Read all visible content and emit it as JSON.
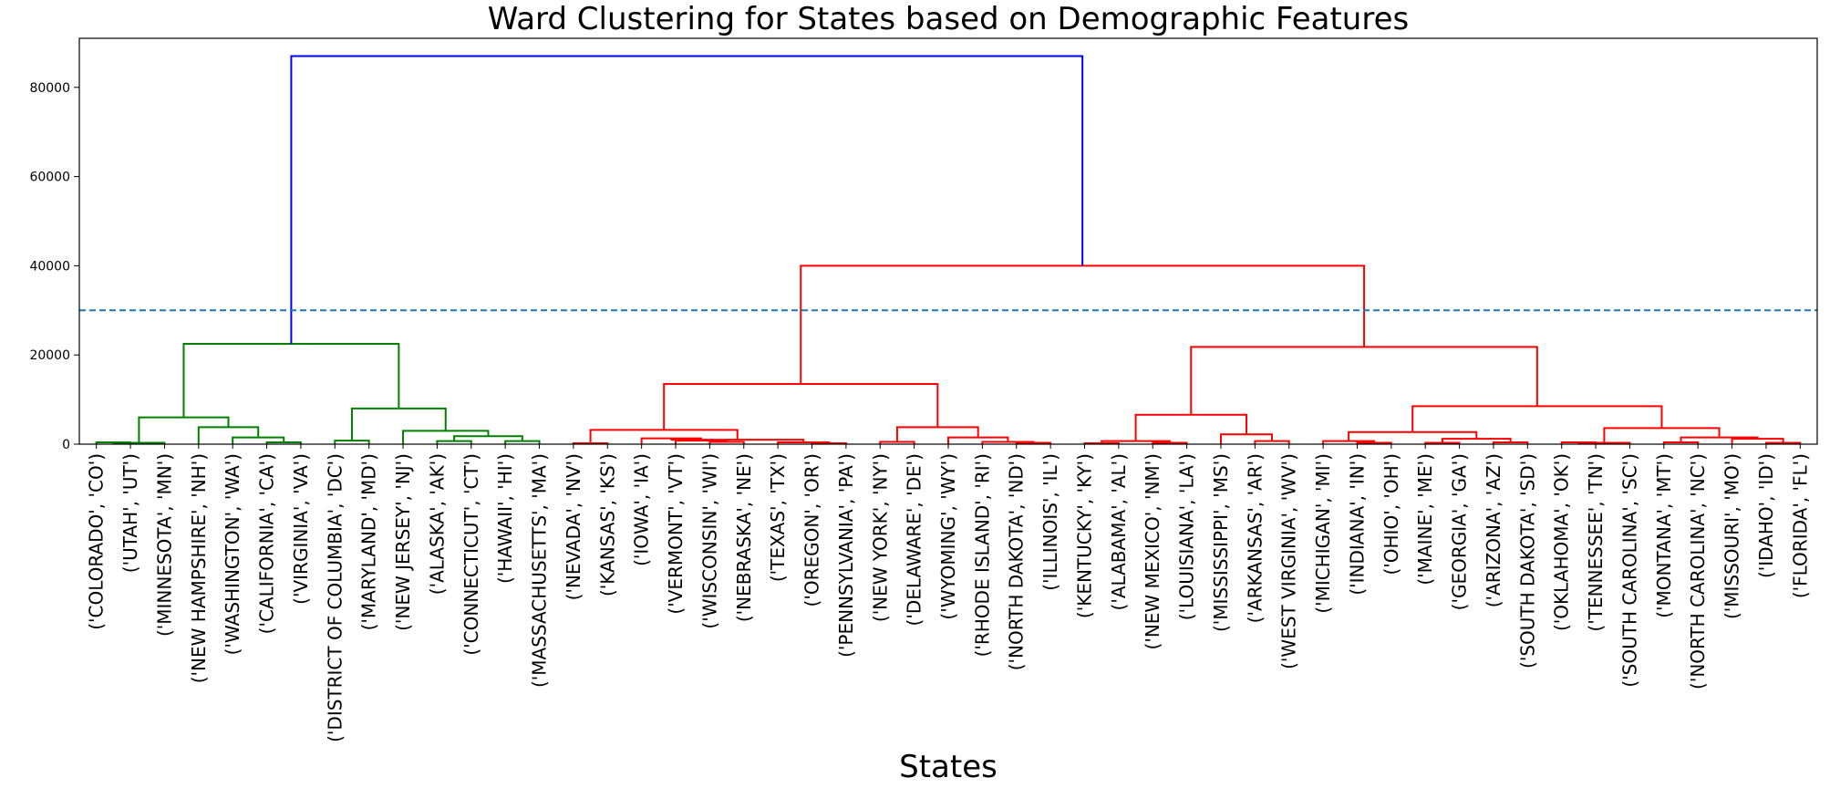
{
  "chart_data": {
    "type": "dendrogram",
    "title": "Ward Clustering for States based on Demographic Features",
    "xlabel": "States",
    "ylabel": "",
    "ylim": [
      0,
      91000
    ],
    "yticks": [
      0,
      20000,
      40000,
      60000,
      80000
    ],
    "threshold": 30000,
    "colors": {
      "above_threshold": "#0000ff",
      "cluster_green": "#008000",
      "cluster_red": "#ff0000",
      "threshold_line": "#1f77b4"
    },
    "leaves": [
      "('COLORADO', 'CO')",
      "('UTAH', 'UT')",
      "('MINNESOTA', 'MN')",
      "('NEW HAMPSHIRE', 'NH')",
      "('WASHINGTON', 'WA')",
      "('CALIFORNIA', 'CA')",
      "('VIRGINIA', 'VA')",
      "('DISTRICT OF COLUMBIA', 'DC')",
      "('MARYLAND', 'MD')",
      "('NEW JERSEY', 'NJ')",
      "('ALASKA', 'AK')",
      "('CONNECTICUT', 'CT')",
      "('HAWAII', 'HI')",
      "('MASSACHUSETTS', 'MA')",
      "('NEVADA', 'NV')",
      "('KANSAS', 'KS')",
      "('IOWA', 'IA')",
      "('VERMONT', 'VT')",
      "('WISCONSIN', 'WI')",
      "('NEBRASKA', 'NE')",
      "('TEXAS', 'TX')",
      "('OREGON', 'OR')",
      "('PENNSYLVANIA', 'PA')",
      "('NEW YORK', 'NY')",
      "('DELAWARE', 'DE')",
      "('WYOMING', 'WY')",
      "('RHODE ISLAND', 'RI')",
      "('NORTH DAKOTA', 'ND')",
      "('ILLINOIS', 'IL')",
      "('KENTUCKY', 'KY')",
      "('ALABAMA', 'AL')",
      "('NEW MEXICO', 'NM')",
      "('LOUISIANA', 'LA')",
      "('MISSISSIPPI', 'MS')",
      "('ARKANSAS', 'AR')",
      "('WEST VIRGINIA', 'WV')",
      "('MICHIGAN', 'MI')",
      "('INDIANA', 'IN')",
      "('OHIO', 'OH')",
      "('MAINE', 'ME')",
      "('GEORGIA', 'GA')",
      "('ARIZONA', 'AZ')",
      "('SOUTH DAKOTA', 'SD')",
      "('OKLAHOMA', 'OK')",
      "('TENNESSEE', 'TN')",
      "('SOUTH CAROLINA', 'SC')",
      "('MONTANA', 'MT')",
      "('NORTH CAROLINA', 'NC')",
      "('MISSOURI', 'MO')",
      "('IDAHO', 'ID')",
      "('FLORIDA', 'FL')"
    ],
    "merges": [
      {
        "id": "g_CO_UT",
        "left": 0,
        "right": 1,
        "height": 400,
        "color": "green"
      },
      {
        "id": "g_CO_MN",
        "left": "g_CO_UT",
        "right": 2,
        "height": 300,
        "color": "green"
      },
      {
        "id": "g_CA_VA",
        "left": 5,
        "right": 6,
        "height": 400,
        "color": "green"
      },
      {
        "id": "g_WA_VA",
        "left": 4,
        "right": "g_CA_VA",
        "height": 1500,
        "color": "green"
      },
      {
        "id": "g_NH_VA",
        "left": 3,
        "right": "g_WA_VA",
        "height": 3800,
        "color": "green"
      },
      {
        "id": "g_left",
        "left": "g_CO_MN",
        "right": "g_NH_VA",
        "height": 6000,
        "color": "green"
      },
      {
        "id": "g_DC_MD",
        "left": 7,
        "right": 8,
        "height": 800,
        "color": "green"
      },
      {
        "id": "g_AK_CT",
        "left": 10,
        "right": 11,
        "height": 700,
        "color": "green"
      },
      {
        "id": "g_HI_MA",
        "left": 12,
        "right": 13,
        "height": 700,
        "color": "green"
      },
      {
        "id": "g_AK_MA",
        "left": "g_AK_CT",
        "right": "g_HI_MA",
        "height": 1800,
        "color": "green"
      },
      {
        "id": "g_NJ_MA",
        "left": 9,
        "right": "g_AK_MA",
        "height": 3000,
        "color": "green"
      },
      {
        "id": "g_DC_MA",
        "left": "g_DC_MD",
        "right": "g_NJ_MA",
        "height": 8000,
        "color": "green"
      },
      {
        "id": "g_all",
        "left": "g_left",
        "right": "g_DC_MA",
        "height": 22500,
        "color": "green"
      },
      {
        "id": "r_NV_KS",
        "left": 14,
        "right": 15,
        "height": 200,
        "color": "red"
      },
      {
        "id": "r_WI_NE",
        "left": 18,
        "right": 19,
        "height": 500,
        "color": "red"
      },
      {
        "id": "r_VT_NE",
        "left": 17,
        "right": "r_WI_NE",
        "height": 800,
        "color": "red"
      },
      {
        "id": "r_IA_NE",
        "left": 16,
        "right": "r_VT_NE",
        "height": 1300,
        "color": "red"
      },
      {
        "id": "r_OR_PA",
        "left": 21,
        "right": 22,
        "height": 200,
        "color": "red"
      },
      {
        "id": "r_TX_PA",
        "left": 20,
        "right": "r_OR_PA",
        "height": 400,
        "color": "red"
      },
      {
        "id": "r_IA_PA",
        "left": "r_IA_NE",
        "right": "r_TX_PA",
        "height": 1000,
        "color": "red"
      },
      {
        "id": "r_A",
        "left": "r_NV_KS",
        "right": "r_IA_PA",
        "height": 3200,
        "color": "red"
      },
      {
        "id": "r_NY_DE",
        "left": 23,
        "right": 24,
        "height": 500,
        "color": "red"
      },
      {
        "id": "r_ND_IL",
        "left": 27,
        "right": 28,
        "height": 300,
        "color": "red"
      },
      {
        "id": "r_RI_IL",
        "left": 26,
        "right": "r_ND_IL",
        "height": 500,
        "color": "red"
      },
      {
        "id": "r_WY_IL",
        "left": 25,
        "right": "r_RI_IL",
        "height": 1500,
        "color": "red"
      },
      {
        "id": "r_B",
        "left": "r_NY_DE",
        "right": "r_WY_IL",
        "height": 3800,
        "color": "red"
      },
      {
        "id": "r_AB",
        "left": "r_A",
        "right": "r_B",
        "height": 13500,
        "color": "red"
      },
      {
        "id": "r_KY_AL",
        "left": 29,
        "right": 30,
        "height": 200,
        "color": "red"
      },
      {
        "id": "r_NM_LA",
        "left": 31,
        "right": 32,
        "height": 300,
        "color": "red"
      },
      {
        "id": "r_KY_LA",
        "left": "r_KY_AL",
        "right": "r_NM_LA",
        "height": 700,
        "color": "red"
      },
      {
        "id": "r_AR_WV",
        "left": 34,
        "right": 35,
        "height": 700,
        "color": "red"
      },
      {
        "id": "r_MS_WV",
        "left": 33,
        "right": "r_AR_WV",
        "height": 2200,
        "color": "red"
      },
      {
        "id": "r_C",
        "left": "r_KY_LA",
        "right": "r_MS_WV",
        "height": 6600,
        "color": "red"
      },
      {
        "id": "r_IN_OH",
        "left": 37,
        "right": 38,
        "height": 300,
        "color": "red"
      },
      {
        "id": "r_MI_OH",
        "left": 36,
        "right": "r_IN_OH",
        "height": 700,
        "color": "red"
      },
      {
        "id": "r_ME_GA",
        "left": 39,
        "right": 40,
        "height": 300,
        "color": "red"
      },
      {
        "id": "r_AZ_SD",
        "left": 41,
        "right": 42,
        "height": 400,
        "color": "red"
      },
      {
        "id": "r_ME_SD",
        "left": "r_ME_GA",
        "right": "r_AZ_SD",
        "height": 1200,
        "color": "red"
      },
      {
        "id": "r_D",
        "left": "r_MI_OH",
        "right": "r_ME_SD",
        "height": 2700,
        "color": "red"
      },
      {
        "id": "r_OK_TN",
        "left": 43,
        "right": 44,
        "height": 400,
        "color": "red"
      },
      {
        "id": "r_OK_SC",
        "left": "r_OK_TN",
        "right": 45,
        "height": 300,
        "color": "red"
      },
      {
        "id": "r_MT_NC",
        "left": 46,
        "right": 47,
        "height": 400,
        "color": "red"
      },
      {
        "id": "r_ID_FL",
        "left": 49,
        "right": 50,
        "height": 300,
        "color": "red"
      },
      {
        "id": "r_MO_FL",
        "left": 48,
        "right": "r_ID_FL",
        "height": 1200,
        "color": "red"
      },
      {
        "id": "r_MT_FL",
        "left": "r_MT_NC",
        "right": "r_MO_FL",
        "height": 1500,
        "color": "red"
      },
      {
        "id": "r_E",
        "left": "r_OK_SC",
        "right": "r_MT_FL",
        "height": 3600,
        "color": "red"
      },
      {
        "id": "r_DE2",
        "left": "r_D",
        "right": "r_E",
        "height": 8500,
        "color": "red"
      },
      {
        "id": "r_CDE",
        "left": "r_C",
        "right": "r_DE2",
        "height": 21800,
        "color": "red"
      },
      {
        "id": "r_all",
        "left": "r_AB",
        "right": "r_CDE",
        "height": 40000,
        "color": "red"
      },
      {
        "id": "root",
        "left": "g_all",
        "right": "r_all",
        "height": 87000,
        "color": "blue"
      }
    ]
  }
}
